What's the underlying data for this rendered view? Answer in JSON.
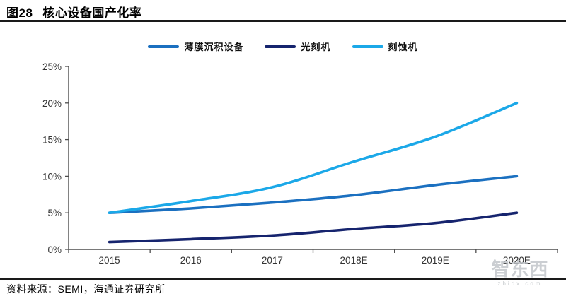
{
  "header": {
    "figure_label": "图28",
    "title": "核心设备国产化率"
  },
  "footer": {
    "source": "资料来源：SEMI，海通证券研究所"
  },
  "watermark": {
    "text": "智东西",
    "subtext": "zhidx.com"
  },
  "chart_data": {
    "type": "line",
    "title": "核心设备国产化率",
    "categories": [
      "2015",
      "2016",
      "2017",
      "2018E",
      "2019E",
      "2020E"
    ],
    "series": [
      {
        "name": "薄膜沉积设备",
        "color": "#1B70C0",
        "values": [
          5,
          5.6,
          6.4,
          7.4,
          8.8,
          10
        ]
      },
      {
        "name": "光刻机",
        "color": "#16246E",
        "values": [
          1,
          1.4,
          1.9,
          2.8,
          3.6,
          5
        ]
      },
      {
        "name": "刻蚀机",
        "color": "#1BA8E8",
        "values": [
          5,
          6.6,
          8.5,
          12,
          15.4,
          20
        ]
      }
    ],
    "xlabel": "",
    "ylabel": "",
    "ylim": [
      0,
      25
    ],
    "yticks": [
      0,
      5,
      10,
      15,
      20,
      25
    ],
    "ytick_labels": [
      "0%",
      "5%",
      "10%",
      "15%",
      "20%",
      "25%"
    ],
    "grid": false,
    "legend_position": "top-center",
    "line_style": "smooth",
    "axis_color": "#4d4d4d"
  }
}
